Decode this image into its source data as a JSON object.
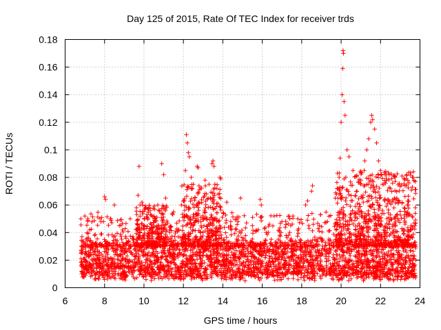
{
  "chart_data": {
    "type": "scatter",
    "title": "Day 125 of 2015, Rate Of TEC Index for receiver trds",
    "xlabel": "GPS time / hours",
    "ylabel": "ROTI / TECUs",
    "xlim": [
      6,
      24
    ],
    "ylim": [
      0,
      0.18
    ],
    "xticks": [
      "6",
      "8",
      "10",
      "12",
      "14",
      "16",
      "18",
      "20",
      "22",
      "24"
    ],
    "yticks": [
      "0",
      "0.02",
      "0.04",
      "0.06",
      "0.08",
      "0.1",
      "0.12",
      "0.14",
      "0.16",
      "0.18"
    ],
    "grid": true,
    "marker": "plus",
    "color": "#ff0000",
    "data_start_hour": 6.8,
    "data_end_hour": 23.8,
    "series": [
      {
        "name": "ROTI",
        "points": [
          [
            6.8,
            0.05
          ],
          [
            7.0,
            0.052
          ],
          [
            7.15,
            0.05
          ],
          [
            7.25,
            0.042
          ],
          [
            7.5,
            0.038
          ],
          [
            7.85,
            0.039
          ],
          [
            8.0,
            0.066
          ],
          [
            8.05,
            0.064
          ],
          [
            8.3,
            0.05
          ],
          [
            8.5,
            0.06
          ],
          [
            8.75,
            0.045
          ],
          [
            9.3,
            0.05
          ],
          [
            9.7,
            0.067
          ],
          [
            9.75,
            0.088
          ],
          [
            9.8,
            0.06
          ],
          [
            9.9,
            0.062
          ],
          [
            10.2,
            0.05
          ],
          [
            10.5,
            0.045
          ],
          [
            10.7,
            0.06
          ],
          [
            10.9,
            0.09
          ],
          [
            11.0,
            0.082
          ],
          [
            11.1,
            0.065
          ],
          [
            11.5,
            0.055
          ],
          [
            11.9,
            0.06
          ],
          [
            12.1,
            0.085
          ],
          [
            12.15,
            0.111
          ],
          [
            12.2,
            0.105
          ],
          [
            12.25,
            0.098
          ],
          [
            12.3,
            0.095
          ],
          [
            12.4,
            0.08
          ],
          [
            12.5,
            0.075
          ],
          [
            12.7,
            0.088
          ],
          [
            12.75,
            0.087
          ],
          [
            13.1,
            0.078
          ],
          [
            13.3,
            0.075
          ],
          [
            13.45,
            0.09
          ],
          [
            13.5,
            0.092
          ],
          [
            13.55,
            0.088
          ],
          [
            13.7,
            0.072
          ],
          [
            13.85,
            0.08
          ],
          [
            13.9,
            0.079
          ],
          [
            14.2,
            0.062
          ],
          [
            14.4,
            0.048
          ],
          [
            14.7,
            0.05
          ],
          [
            14.9,
            0.065
          ],
          [
            15.2,
            0.047
          ],
          [
            15.5,
            0.045
          ],
          [
            15.9,
            0.064
          ],
          [
            15.95,
            0.06
          ],
          [
            16.2,
            0.04
          ],
          [
            16.6,
            0.052
          ],
          [
            17.0,
            0.048
          ],
          [
            17.4,
            0.05
          ],
          [
            17.8,
            0.05
          ],
          [
            18.2,
            0.06
          ],
          [
            18.3,
            0.063
          ],
          [
            18.5,
            0.07
          ],
          [
            18.55,
            0.074
          ],
          [
            18.9,
            0.045
          ],
          [
            19.3,
            0.048
          ],
          [
            19.7,
            0.065
          ],
          [
            19.8,
            0.072
          ],
          [
            19.9,
            0.08
          ],
          [
            19.95,
            0.094
          ],
          [
            20.0,
            0.12
          ],
          [
            20.05,
            0.14
          ],
          [
            20.08,
            0.159
          ],
          [
            20.1,
            0.172
          ],
          [
            20.12,
            0.17
          ],
          [
            20.15,
            0.135
          ],
          [
            20.2,
            0.125
          ],
          [
            20.3,
            0.1
          ],
          [
            20.4,
            0.095
          ],
          [
            20.6,
            0.085
          ],
          [
            20.8,
            0.07
          ],
          [
            21.0,
            0.075
          ],
          [
            21.2,
            0.092
          ],
          [
            21.3,
            0.1
          ],
          [
            21.4,
            0.108
          ],
          [
            21.5,
            0.12
          ],
          [
            21.55,
            0.125
          ],
          [
            21.6,
            0.122
          ],
          [
            21.7,
            0.115
          ],
          [
            21.8,
            0.105
          ],
          [
            21.9,
            0.092
          ],
          [
            22.0,
            0.085
          ],
          [
            22.1,
            0.075
          ],
          [
            22.3,
            0.082
          ],
          [
            22.5,
            0.072
          ],
          [
            22.7,
            0.065
          ],
          [
            22.9,
            0.062
          ],
          [
            23.2,
            0.058
          ],
          [
            23.3,
            0.079
          ],
          [
            23.4,
            0.06
          ],
          [
            23.6,
            0.052
          ],
          [
            23.75,
            0.045
          ]
        ],
        "baseline_band": [
          0.005,
          0.03
        ],
        "active_intervals": [
          [
            9.6,
            11.2,
            0.06
          ],
          [
            11.9,
            13.9,
            0.075
          ],
          [
            19.7,
            23.8,
            0.085
          ]
        ]
      }
    ]
  }
}
